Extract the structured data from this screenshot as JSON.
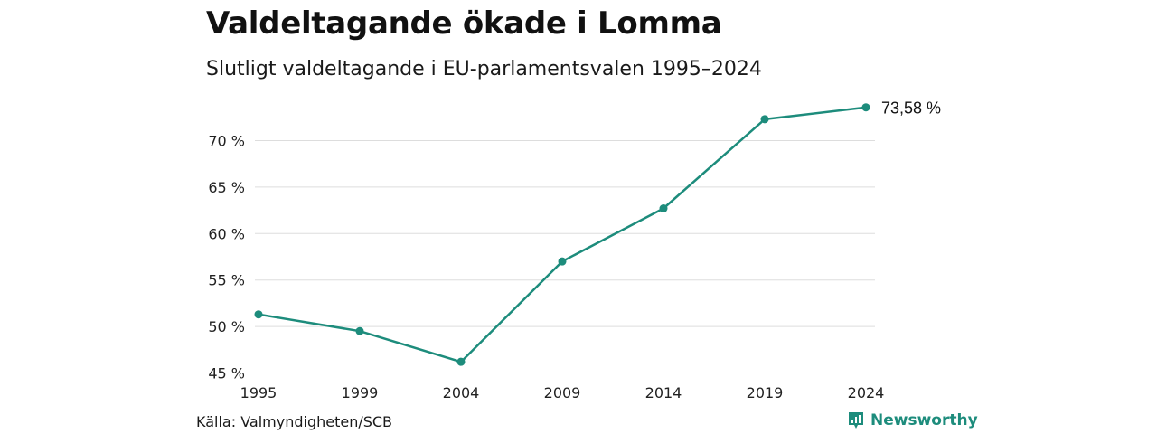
{
  "header": {
    "title": "Valdeltagande ökade i Lomma",
    "subtitle": "Slutligt valdeltagande i EU-parlamentsvalen 1995–2024"
  },
  "footer": {
    "source": "Källa: Valmyndigheten/SCB",
    "brand": "Newsworthy",
    "brand_icon": "newsworthy-logo-icon"
  },
  "colors": {
    "line": "#1d8c7c",
    "grid": "#dddddd",
    "brand": "#1d8c7c"
  },
  "chart_data": {
    "type": "line",
    "title": "Valdeltagande ökade i Lomma",
    "subtitle": "Slutligt valdeltagande i EU-parlamentsvalen 1995–2024",
    "x": [
      "1995",
      "1999",
      "2004",
      "2009",
      "2014",
      "2019",
      "2024"
    ],
    "series": [
      {
        "values": [
          51.3,
          49.5,
          46.2,
          57.0,
          62.7,
          72.3,
          73.58
        ]
      }
    ],
    "y_ticks": [
      45,
      50,
      55,
      60,
      65,
      70
    ],
    "y_tick_labels": [
      "45 %",
      "50 %",
      "55 %",
      "60 %",
      "65 %",
      "70 %"
    ],
    "ylim": [
      45,
      73.58
    ],
    "end_label": "73,58 %",
    "grid": true,
    "legend": "none"
  }
}
